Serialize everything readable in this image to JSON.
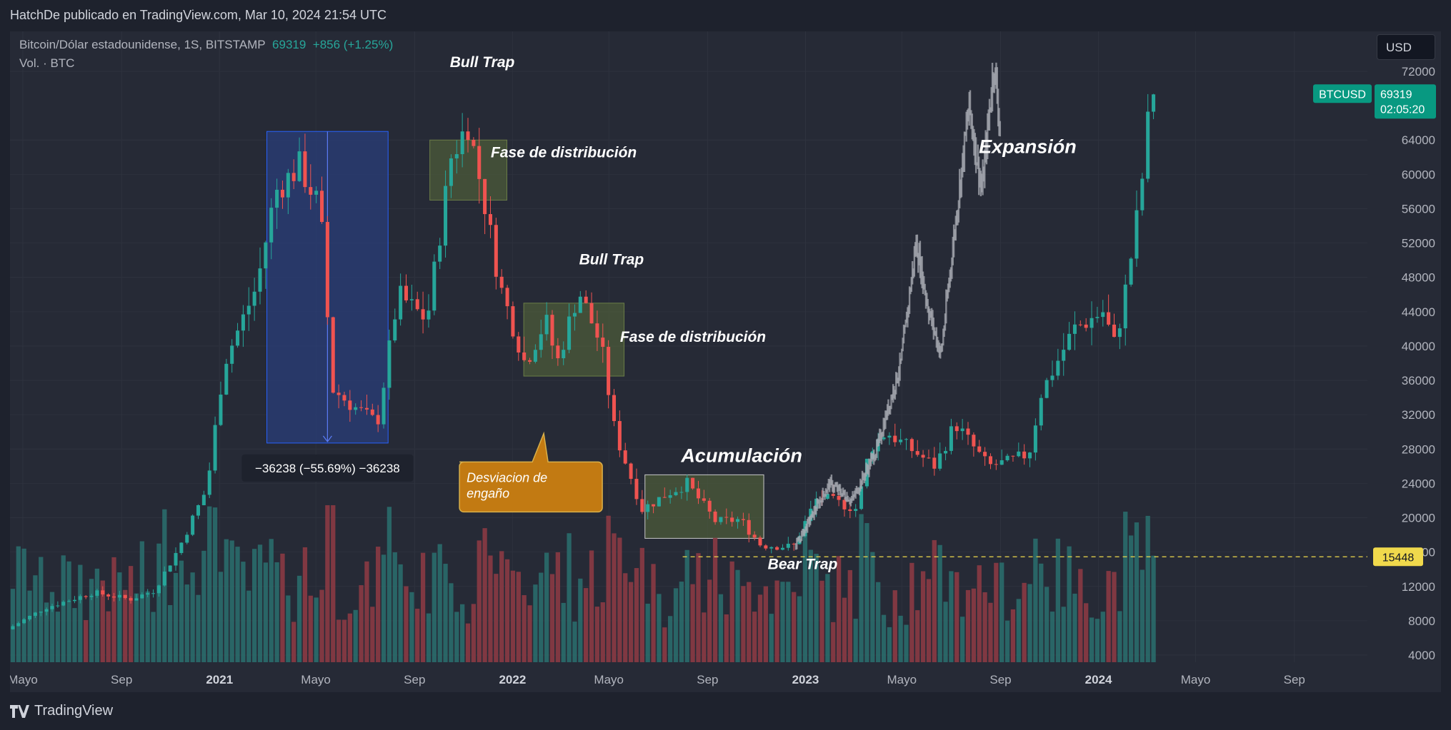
{
  "header": {
    "published_text": "HatchDe publicado en TradingView.com, Mar 10, 2024 21:54 UTC"
  },
  "legend": {
    "symbol_text": "Bitcoin/Dólar estadounidense, 1S, BITSTAMP",
    "last_price": "69319",
    "change": "+856 (+1.25%)",
    "volume_text": "Vol. · BTC"
  },
  "currency_button": "USD",
  "price_badge": {
    "symbol": "BTCUSD",
    "price": "69319",
    "countdown": "02:05:20"
  },
  "level_badge": "15448",
  "measure_label": "−36238 (−55.69%) −36238",
  "footer": {
    "brand": "TradingView"
  },
  "colors": {
    "up": "#26a69a",
    "down": "#ef5350",
    "badge": "#089981",
    "level": "#f0d94c",
    "callout": "#c27a12",
    "measure": "#2a3d7a"
  },
  "chart_data": {
    "type": "candlestick",
    "interval": "1W",
    "price_scale": {
      "min": 3000,
      "max": 74000,
      "ticks": [
        4000,
        8000,
        12000,
        16000,
        20000,
        24000,
        28000,
        32000,
        36000,
        40000,
        44000,
        48000,
        52000,
        56000,
        60000,
        64000,
        72000
      ]
    },
    "time_axis": {
      "ticks": [
        {
          "label": "Mayo",
          "date": "2020-05-01"
        },
        {
          "label": "Sep",
          "date": "2020-09-01"
        },
        {
          "label": "2021",
          "date": "2021-01-01"
        },
        {
          "label": "Mayo",
          "date": "2021-05-01"
        },
        {
          "label": "Sep",
          "date": "2021-09-01"
        },
        {
          "label": "2022",
          "date": "2022-01-01"
        },
        {
          "label": "Mayo",
          "date": "2022-05-01"
        },
        {
          "label": "Sep",
          "date": "2022-09-01"
        },
        {
          "label": "2023",
          "date": "2023-01-01"
        },
        {
          "label": "Mayo",
          "date": "2023-05-01"
        },
        {
          "label": "Sep",
          "date": "2023-09-01"
        },
        {
          "label": "2024",
          "date": "2024-01-01"
        },
        {
          "label": "Mayo",
          "date": "2024-05-01"
        },
        {
          "label": "Sep",
          "date": "2024-09-01"
        }
      ],
      "range": [
        "2020-04-15",
        "2024-12-01"
      ]
    },
    "series": [
      {
        "kind": "price_keypoints",
        "points": [
          [
            "2020-04-15",
            7000
          ],
          [
            "2020-06-01",
            9500
          ],
          [
            "2020-08-01",
            11300
          ],
          [
            "2020-09-15",
            10500
          ],
          [
            "2020-10-15",
            11500
          ],
          [
            "2020-11-15",
            16500
          ],
          [
            "2020-12-20",
            23500
          ],
          [
            "2021-01-10",
            38000
          ],
          [
            "2021-02-20",
            47000
          ],
          [
            "2021-03-15",
            58000
          ],
          [
            "2021-04-14",
            61000
          ],
          [
            "2021-05-10",
            56000
          ],
          [
            "2021-05-25",
            35000
          ],
          [
            "2021-06-20",
            33000
          ],
          [
            "2021-07-20",
            31000
          ],
          [
            "2021-08-15",
            46000
          ],
          [
            "2021-09-20",
            43000
          ],
          [
            "2021-10-20",
            62000
          ],
          [
            "2021-11-10",
            66000
          ],
          [
            "2021-11-30",
            57000
          ],
          [
            "2021-12-20",
            47000
          ],
          [
            "2022-01-20",
            38000
          ],
          [
            "2022-02-15",
            43000
          ],
          [
            "2022-03-01",
            38000
          ],
          [
            "2022-03-28",
            46500
          ],
          [
            "2022-04-25",
            40000
          ],
          [
            "2022-05-12",
            30000
          ],
          [
            "2022-06-15",
            21000
          ],
          [
            "2022-07-20",
            23000
          ],
          [
            "2022-08-10",
            24000
          ],
          [
            "2022-09-15",
            19500
          ],
          [
            "2022-10-15",
            19800
          ],
          [
            "2022-11-10",
            16800
          ],
          [
            "2022-12-20",
            16600
          ],
          [
            "2023-01-20",
            22500
          ],
          [
            "2023-03-10",
            21000
          ],
          [
            "2023-03-25",
            28000
          ],
          [
            "2023-04-15",
            30000
          ],
          [
            "2023-06-15",
            26000
          ],
          [
            "2023-07-10",
            31000
          ],
          [
            "2023-08-20",
            26000
          ],
          [
            "2023-09-15",
            26500
          ],
          [
            "2023-10-10",
            27500
          ],
          [
            "2023-10-25",
            34500
          ],
          [
            "2023-12-05",
            42000
          ],
          [
            "2024-01-10",
            44000
          ],
          [
            "2024-01-25",
            40000
          ],
          [
            "2024-02-10",
            48000
          ],
          [
            "2024-02-25",
            57000
          ],
          [
            "2024-03-10",
            69319
          ]
        ]
      },
      {
        "kind": "projection_keypoints",
        "points": [
          [
            "2022-12-20",
            16500
          ],
          [
            "2023-02-01",
            24000
          ],
          [
            "2023-03-01",
            22000
          ],
          [
            "2023-04-01",
            28000
          ],
          [
            "2023-05-01",
            38000
          ],
          [
            "2023-05-20",
            52000
          ],
          [
            "2023-06-05",
            44000
          ],
          [
            "2023-06-20",
            39000
          ],
          [
            "2023-07-10",
            56000
          ],
          [
            "2023-07-25",
            68000
          ],
          [
            "2023-08-10",
            58000
          ],
          [
            "2023-08-25",
            73000
          ],
          [
            "2023-09-01",
            66000
          ]
        ]
      }
    ],
    "annotations": [
      {
        "text": "Bull Trap",
        "date": "2021-10-15",
        "price": 72500,
        "type": "label"
      },
      {
        "text": "Fase de distribución",
        "date": "2021-12-05",
        "price": 62000,
        "type": "label"
      },
      {
        "text": "Bull Trap",
        "date": "2022-03-25",
        "price": 49500,
        "type": "label"
      },
      {
        "text": "Fase de distribución",
        "date": "2022-05-15",
        "price": 40500,
        "type": "label"
      },
      {
        "text": "Acumulación",
        "date": "2022-07-30",
        "price": 26500,
        "type": "label"
      },
      {
        "text": "Bear Trap",
        "date": "2022-11-15",
        "price": 14000,
        "type": "label"
      },
      {
        "text": "Expansión",
        "date": "2023-08-05",
        "price": 62500,
        "type": "label"
      },
      {
        "text": "Desviacion de engaño",
        "date": "2022-01-15",
        "price": 24000,
        "type": "callout"
      }
    ],
    "zones": [
      {
        "kind": "distribution",
        "from": "2021-09-20",
        "to": "2021-12-25",
        "low": 57000,
        "high": 64000
      },
      {
        "kind": "distribution",
        "from": "2022-01-15",
        "to": "2022-05-20",
        "low": 36500,
        "high": 45000
      },
      {
        "kind": "accumulation",
        "from": "2022-06-15",
        "to": "2022-11-10",
        "low": 17600,
        "high": 25000
      },
      {
        "kind": "measure",
        "from": "2021-03-01",
        "to": "2021-07-30",
        "low": 28700,
        "high": 65000,
        "delta": -36238,
        "delta_pct": -55.69
      }
    ],
    "horizontal_level": {
      "price": 15448,
      "from": "2022-08-01"
    },
    "volume": {
      "min": 0,
      "max": 100,
      "note": "relative weekly volume bars aligned with candles"
    }
  }
}
